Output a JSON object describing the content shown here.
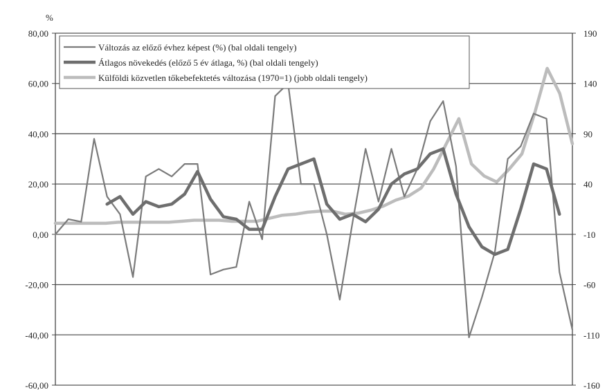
{
  "chart_data": {
    "type": "line",
    "unit_label": "%",
    "left_axis": {
      "min": -60,
      "max": 80,
      "step": 20,
      "tick_labels": [
        "80,00",
        "60,00",
        "40,00",
        "20,00",
        "0,00",
        "-20,00",
        "-40,00",
        "-60,00"
      ]
    },
    "right_axis": {
      "min": -160,
      "max": 190,
      "step": 50,
      "tick_labels": [
        "190",
        "140",
        "90",
        "40",
        "-10",
        "-60",
        "-110",
        "-160"
      ]
    },
    "grid": true,
    "legend_position": "top-left, inside plot",
    "series": [
      {
        "name": "Változás az előző évhez képest (%) (bal oldali tengely)",
        "axis": "left",
        "color": "#7a7a7a",
        "values": [
          0,
          6,
          5,
          38,
          15,
          8,
          -17,
          23,
          26,
          23,
          28,
          28,
          -16,
          -14,
          -13,
          13,
          -2,
          55,
          60,
          20,
          20,
          0,
          -26,
          5,
          34,
          13,
          34,
          15,
          26,
          45,
          53,
          27,
          -41,
          -25,
          -7,
          30,
          35,
          48,
          46,
          -15,
          -38
        ]
      },
      {
        "name": "Átlagos növekedés (előző 5 év átlaga, %) (bal oldali tengely)",
        "axis": "left",
        "color": "#6e6e6e",
        "values": [
          null,
          null,
          null,
          null,
          12,
          15,
          8,
          13,
          11,
          12,
          16,
          25,
          14,
          7,
          6,
          2,
          2,
          15,
          26,
          28,
          30,
          12,
          6,
          8,
          5,
          10,
          20,
          24,
          26,
          32,
          34,
          16,
          3,
          -5,
          -8,
          -6,
          10,
          28,
          26,
          8,
          null
        ]
      },
      {
        "name": "Külföldi közvetlen tőkebefektetés változása (1970=1) (jobb oldali tengely)",
        "axis": "right",
        "color": "#bcbcbc",
        "values": [
          1,
          1,
          1,
          1,
          1,
          2,
          2,
          2,
          2,
          2,
          3,
          4,
          4,
          4,
          3,
          3,
          3,
          6,
          9,
          10,
          12,
          13,
          13,
          10,
          11,
          14,
          18,
          24,
          28,
          36,
          55,
          80,
          105,
          60,
          48,
          42,
          55,
          70,
          110,
          155,
          130,
          80
        ]
      }
    ]
  }
}
